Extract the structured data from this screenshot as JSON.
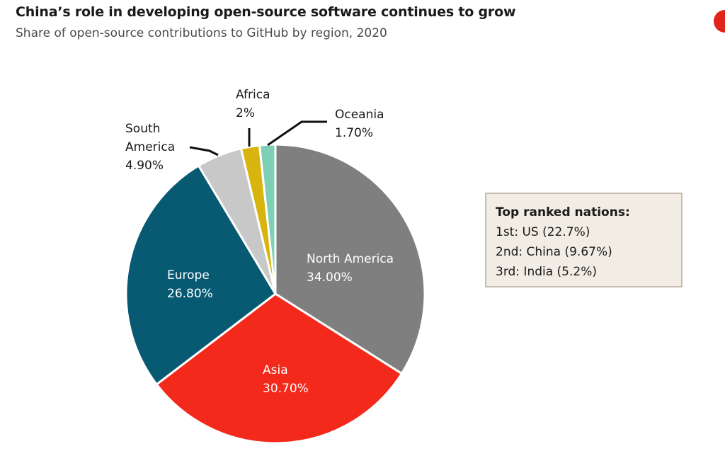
{
  "title": "China’s role in developing open-source software continues to grow",
  "subtitle": "Share of open-source contributions to GitHub by region, 2020",
  "logo_icon": "red-circle-logo",
  "colors": {
    "north_america": "#7f7f7f",
    "asia": "#f2291b",
    "europe": "#075a72",
    "south_america": "#c8c8c8",
    "africa": "#d8b40e",
    "oceania": "#7fcfb7"
  },
  "chart_data": {
    "type": "pie",
    "title": "Share of open-source contributions to GitHub by region, 2020",
    "unit": "%",
    "slices": [
      {
        "label": "North America",
        "value": 34.0,
        "display": "34.00%"
      },
      {
        "label": "Asia",
        "value": 30.7,
        "display": "30.70%"
      },
      {
        "label": "Europe",
        "value": 26.8,
        "display": "26.80%"
      },
      {
        "label": "South America",
        "value": 4.9,
        "display": "4.90%"
      },
      {
        "label": "Africa",
        "value": 2.0,
        "display": "2%"
      },
      {
        "label": "Oceania",
        "value": 1.7,
        "display": "1.70%"
      }
    ]
  },
  "labels": {
    "north_america": {
      "name": "North America",
      "value": "34.00%"
    },
    "asia": {
      "name": "Asia",
      "value": "30.70%"
    },
    "europe": {
      "name": "Europe",
      "value": "26.80%"
    },
    "south_america": {
      "name_line1": "South",
      "name_line2": "America",
      "value": "4.90%"
    },
    "africa": {
      "name": "Africa",
      "value": "2%"
    },
    "oceania": {
      "name": "Oceania",
      "value": "1.70%"
    }
  },
  "callout": {
    "heading": "Top ranked nations:",
    "lines": [
      "1st: US (22.7%)",
      "2nd: China (9.67%)",
      "3rd: India (5.2%)"
    ]
  }
}
